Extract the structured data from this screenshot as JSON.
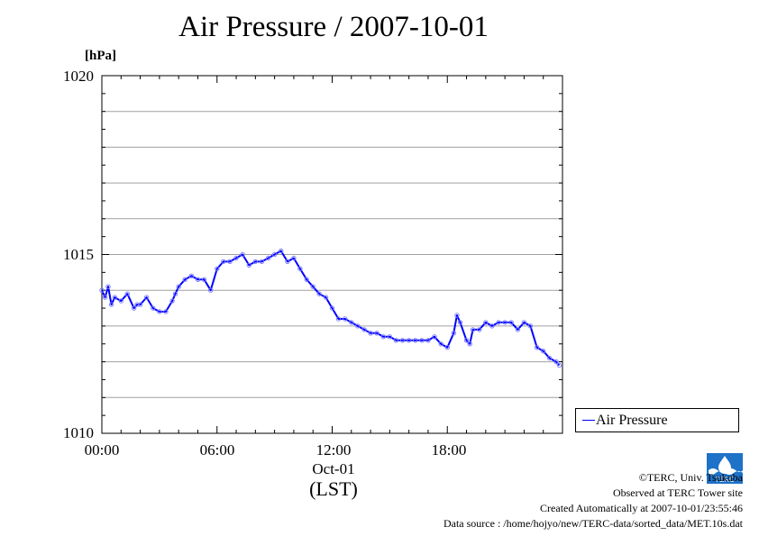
{
  "title": "Air Pressure / 2007-10-01",
  "unit": "[hPa]",
  "y_ticks": [
    "1020",
    "1015",
    "1010"
  ],
  "x_ticks": [
    "00:00",
    "06:00",
    "12:00",
    "18:00"
  ],
  "date_label": "Oct-01",
  "tz_label": "(LST)",
  "legend_label": "Air Pressure",
  "credits": {
    "copyright": "©TERC, Univ. Tsukuba",
    "observed": "Observed at TERC Tower site",
    "created": "Created Automatically at 2007-10-01/23:55:46",
    "source": "Data source : /home/hojyo/new/TERC-data/sorted_data/MET.10s.dat"
  },
  "logo_text": "TERC",
  "colors": {
    "series": "#0000ff",
    "grid": "#a0a0a0",
    "logo": "#1e72c8"
  },
  "chart_data": {
    "type": "line",
    "title": "Air Pressure / 2007-10-01",
    "xlabel": "(LST)",
    "ylabel": "[hPa]",
    "x_unit": "hour of day",
    "ylim": [
      1010,
      1020
    ],
    "xlim": [
      0,
      24
    ],
    "grid": "horizontal",
    "legend": "bottom-right outside",
    "series": [
      {
        "name": "Air Pressure",
        "x": [
          0,
          0.17,
          0.33,
          0.5,
          0.67,
          1.0,
          1.33,
          1.67,
          1.83,
          2.0,
          2.33,
          2.67,
          3.0,
          3.33,
          3.67,
          3.83,
          4.0,
          4.33,
          4.67,
          5.0,
          5.33,
          5.67,
          6.0,
          6.33,
          6.67,
          7.0,
          7.33,
          7.67,
          8.0,
          8.33,
          8.67,
          9.0,
          9.33,
          9.67,
          10.0,
          10.33,
          10.67,
          11.0,
          11.33,
          11.67,
          12.0,
          12.33,
          12.67,
          13.0,
          13.33,
          13.67,
          14.0,
          14.33,
          14.67,
          15.0,
          15.33,
          15.67,
          16.0,
          16.33,
          16.67,
          17.0,
          17.33,
          17.67,
          18.0,
          18.33,
          18.5,
          18.67,
          19.0,
          19.17,
          19.33,
          19.67,
          20.0,
          20.33,
          20.67,
          21.0,
          21.33,
          21.67,
          22.0,
          22.33,
          22.67,
          23.0,
          23.33,
          23.67,
          23.83
        ],
        "values": [
          1014.0,
          1013.8,
          1014.1,
          1013.6,
          1013.8,
          1013.7,
          1013.9,
          1013.5,
          1013.6,
          1013.6,
          1013.8,
          1013.5,
          1013.4,
          1013.4,
          1013.7,
          1013.9,
          1014.1,
          1014.3,
          1014.4,
          1014.3,
          1014.3,
          1014.0,
          1014.6,
          1014.8,
          1014.8,
          1014.9,
          1015.0,
          1014.7,
          1014.8,
          1014.8,
          1014.9,
          1015.0,
          1015.1,
          1014.8,
          1014.9,
          1014.6,
          1014.3,
          1014.1,
          1013.9,
          1013.8,
          1013.5,
          1013.2,
          1013.2,
          1013.1,
          1013.0,
          1012.9,
          1012.8,
          1012.8,
          1012.7,
          1012.7,
          1012.6,
          1012.6,
          1012.6,
          1012.6,
          1012.6,
          1012.6,
          1012.7,
          1012.5,
          1012.4,
          1012.8,
          1013.3,
          1013.1,
          1012.6,
          1012.5,
          1012.9,
          1012.9,
          1013.1,
          1013.0,
          1013.1,
          1013.1,
          1013.1,
          1012.9,
          1013.1,
          1013.0,
          1012.4,
          1012.3,
          1012.1,
          1012.0,
          1011.9
        ]
      }
    ]
  }
}
